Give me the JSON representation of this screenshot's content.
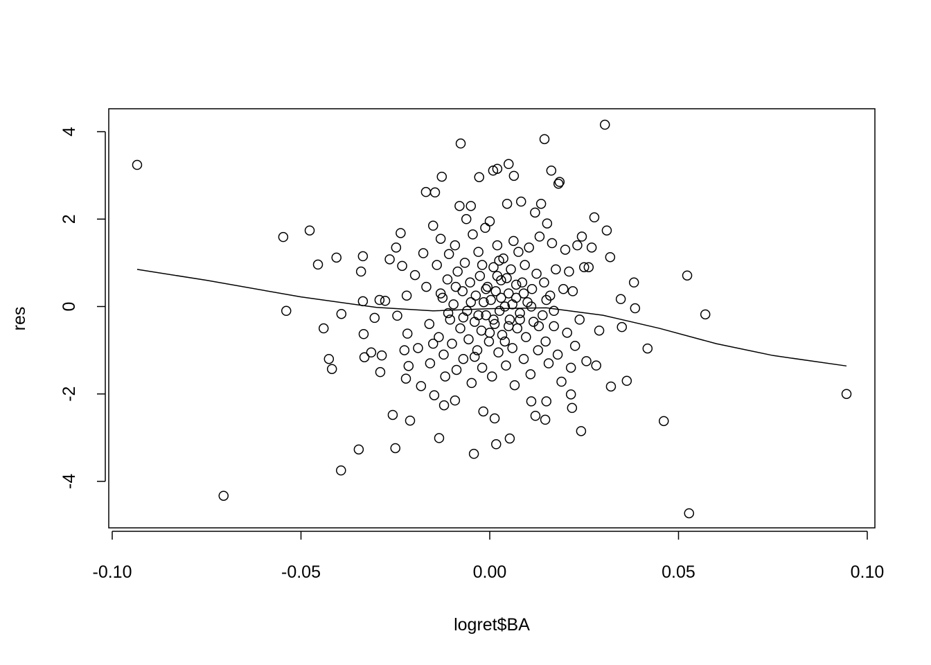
{
  "chart_data": {
    "type": "scatter",
    "title": "",
    "xlabel": "logret$BA",
    "ylabel": "res",
    "xlim": [
      -0.101,
      0.102
    ],
    "ylim": [
      -5.06,
      4.52
    ],
    "grid": false,
    "x_ticks": [
      -0.1,
      -0.05,
      0.0,
      0.05,
      0.1
    ],
    "x_tick_labels": [
      "-0.10",
      "-0.05",
      "0.00",
      "0.05",
      "0.10"
    ],
    "y_ticks": [
      -4,
      -2,
      0,
      2,
      4
    ],
    "y_tick_labels": [
      "-4",
      "-2",
      "0",
      "2",
      "4"
    ],
    "point_color": "#000000",
    "marker": "open-circle",
    "points": [
      [
        -0.0934,
        3.24
      ],
      [
        -0.0705,
        -4.33
      ],
      [
        -0.0547,
        1.59
      ],
      [
        -0.0539,
        -0.1
      ],
      [
        -0.0477,
        1.74
      ],
      [
        -0.0455,
        0.96
      ],
      [
        -0.044,
        -0.5
      ],
      [
        -0.0426,
        -1.2
      ],
      [
        -0.0418,
        -1.43
      ],
      [
        -0.0406,
        1.12
      ],
      [
        -0.0394,
        -3.75
      ],
      [
        -0.0393,
        -0.17
      ],
      [
        -0.0347,
        -3.27
      ],
      [
        -0.0341,
        0.8
      ],
      [
        -0.0336,
        1.15
      ],
      [
        -0.0336,
        0.12
      ],
      [
        -0.0334,
        -0.63
      ],
      [
        -0.0332,
        -1.16
      ],
      [
        -0.0314,
        -1.05
      ],
      [
        -0.0305,
        -0.26
      ],
      [
        -0.0292,
        0.15
      ],
      [
        -0.029,
        -1.5
      ],
      [
        -0.0286,
        -1.12
      ],
      [
        -0.0277,
        0.13
      ],
      [
        -0.0257,
        -2.48
      ],
      [
        -0.025,
        -3.24
      ],
      [
        -0.0077,
        3.73
      ],
      [
        -0.0042,
        -3.37
      ],
      [
        0.0017,
        -3.15
      ],
      [
        0.0053,
        -3.02
      ],
      [
        0.0145,
        3.83
      ],
      [
        0.0305,
        4.16
      ],
      [
        0.0242,
        -2.85
      ],
      [
        0.0321,
        -1.83
      ],
      [
        0.0363,
        -1.7
      ],
      [
        0.0382,
        0.55
      ],
      [
        0.0385,
        -0.04
      ],
      [
        0.0418,
        -0.96
      ],
      [
        0.0461,
        -2.62
      ],
      [
        0.0523,
        0.71
      ],
      [
        0.0528,
        -4.73
      ],
      [
        0.0571,
        -0.18
      ],
      [
        0.0945,
        -2.0
      ],
      [
        0.0319,
        1.13
      ],
      [
        0.031,
        1.74
      ],
      [
        0.0277,
        2.04
      ],
      [
        -0.0169,
        2.62
      ],
      [
        -0.0145,
        2.61
      ],
      [
        -0.0127,
        2.97
      ],
      [
        -0.0028,
        2.96
      ],
      [
        0.0009,
        3.11
      ],
      [
        0.002,
        3.15
      ],
      [
        0.005,
        3.26
      ],
      [
        0.0064,
        2.99
      ],
      [
        0.0163,
        3.11
      ],
      [
        0.0182,
        2.81
      ],
      [
        0.035,
        -0.47
      ],
      [
        0.0347,
        0.17
      ],
      [
        -0.0121,
        -2.26
      ],
      [
        -0.0092,
        -2.15
      ],
      [
        -0.0017,
        -2.4
      ],
      [
        0.0013,
        -2.56
      ],
      [
        0.0121,
        -2.5
      ],
      [
        0.0147,
        -2.59
      ],
      [
        -0.0211,
        -2.61
      ],
      [
        -0.0134,
        -3.01
      ],
      [
        0.011,
        -2.17
      ],
      [
        0.015,
        -2.17
      ],
      [
        0.0215,
        -2.01
      ],
      [
        0.0218,
        -2.32
      ],
      [
        -0.0236,
        1.68
      ],
      [
        -0.0248,
        1.35
      ],
      [
        -0.0265,
        1.08
      ],
      [
        -0.0232,
        0.93
      ],
      [
        -0.022,
        0.25
      ],
      [
        -0.0245,
        -0.21
      ],
      [
        -0.0218,
        -0.62
      ],
      [
        -0.0226,
        -1.0
      ],
      [
        -0.0215,
        -1.36
      ],
      [
        -0.0222,
        -1.65
      ],
      [
        -0.0198,
        0.72
      ],
      [
        -0.019,
        -0.95
      ],
      [
        -0.0182,
        -1.82
      ],
      [
        -0.0176,
        1.22
      ],
      [
        -0.0168,
        0.45
      ],
      [
        -0.016,
        -0.4
      ],
      [
        -0.0158,
        -1.3
      ],
      [
        -0.015,
        1.85
      ],
      [
        -0.0147,
        -2.03
      ],
      [
        -0.014,
        0.95
      ],
      [
        -0.0135,
        -0.7
      ],
      [
        -0.013,
        1.55
      ],
      [
        -0.0125,
        0.2
      ],
      [
        -0.0122,
        -1.1
      ],
      [
        -0.0118,
        -1.6
      ],
      [
        -0.0112,
        0.62
      ],
      [
        -0.0108,
        1.2
      ],
      [
        -0.0105,
        -0.3
      ],
      [
        -0.01,
        -0.85
      ],
      [
        -0.0096,
        0.05
      ],
      [
        -0.0092,
        1.4
      ],
      [
        -0.0088,
        -1.45
      ],
      [
        -0.0085,
        0.8
      ],
      [
        -0.008,
        2.3
      ],
      [
        -0.0078,
        -0.5
      ],
      [
        -0.0072,
        0.35
      ],
      [
        -0.007,
        -1.2
      ],
      [
        -0.0066,
        1.0
      ],
      [
        -0.0062,
        2.0
      ],
      [
        -0.006,
        -0.1
      ],
      [
        -0.0056,
        -0.75
      ],
      [
        -0.0052,
        0.55
      ],
      [
        -0.005,
        2.3
      ],
      [
        -0.0048,
        -1.75
      ],
      [
        -0.0045,
        1.65
      ],
      [
        -0.004,
        -0.35
      ],
      [
        -0.0037,
        0.25
      ],
      [
        -0.0033,
        -1.0
      ],
      [
        -0.003,
        1.25
      ],
      [
        -0.0026,
        0.7
      ],
      [
        -0.0022,
        -0.55
      ],
      [
        -0.002,
        -1.4
      ],
      [
        -0.0016,
        0.1
      ],
      [
        -0.0012,
        1.8
      ],
      [
        -0.001,
        -0.2
      ],
      [
        -0.0006,
        0.45
      ],
      [
        -0.0002,
        -0.8
      ],
      [
        0.0,
        1.95
      ],
      [
        0.0003,
        0.15
      ],
      [
        0.0006,
        -1.6
      ],
      [
        0.001,
        0.9
      ],
      [
        0.0013,
        -0.4
      ],
      [
        0.0016,
        0.35
      ],
      [
        0.002,
        1.4
      ],
      [
        0.0023,
        -1.05
      ],
      [
        0.0026,
        -0.1
      ],
      [
        0.003,
        0.6
      ],
      [
        0.0033,
        -0.65
      ],
      [
        0.0036,
        1.1
      ],
      [
        0.004,
        0.0
      ],
      [
        0.0043,
        -1.35
      ],
      [
        0.0046,
        2.35
      ],
      [
        0.005,
        0.3
      ],
      [
        0.0053,
        -0.3
      ],
      [
        0.0056,
        0.85
      ],
      [
        0.006,
        -0.95
      ],
      [
        0.0063,
        1.5
      ],
      [
        0.0066,
        -1.8
      ],
      [
        0.007,
        0.2
      ],
      [
        0.0073,
        -0.5
      ],
      [
        0.0076,
        1.25
      ],
      [
        0.008,
        -0.15
      ],
      [
        0.0083,
        2.4
      ],
      [
        0.0086,
        0.55
      ],
      [
        0.009,
        -1.2
      ],
      [
        0.0093,
        0.95
      ],
      [
        0.0096,
        -0.7
      ],
      [
        0.01,
        0.1
      ],
      [
        0.0104,
        1.35
      ],
      [
        0.0108,
        -1.55
      ],
      [
        0.0112,
        0.4
      ],
      [
        0.0116,
        -0.35
      ],
      [
        0.012,
        2.15
      ],
      [
        0.0124,
        0.75
      ],
      [
        0.0128,
        -1.0
      ],
      [
        0.0132,
        1.6
      ],
      [
        0.0136,
        2.35
      ],
      [
        0.014,
        -0.2
      ],
      [
        0.0144,
        0.55
      ],
      [
        0.0148,
        -0.8
      ],
      [
        0.0152,
        1.9
      ],
      [
        0.0156,
        -1.3
      ],
      [
        0.016,
        0.25
      ],
      [
        0.0165,
        1.45
      ],
      [
        0.017,
        -0.45
      ],
      [
        0.0175,
        0.85
      ],
      [
        0.018,
        -1.1
      ],
      [
        0.0185,
        2.85
      ],
      [
        0.019,
        -1.72
      ],
      [
        0.0195,
        0.4
      ],
      [
        0.02,
        1.3
      ],
      [
        0.0205,
        -0.6
      ],
      [
        0.021,
        0.8
      ],
      [
        0.0215,
        -1.4
      ],
      [
        0.022,
        0.35
      ],
      [
        0.0226,
        -0.9
      ],
      [
        0.0232,
        1.4
      ],
      [
        0.0238,
        -0.3
      ],
      [
        0.0244,
        1.6
      ],
      [
        0.025,
        0.9
      ],
      [
        0.0256,
        -1.25
      ],
      [
        0.0262,
        0.9
      ],
      [
        0.027,
        1.35
      ],
      [
        0.0282,
        -1.35
      ],
      [
        0.029,
        -0.55
      ],
      [
        -0.005,
        0.1
      ],
      [
        -0.003,
        -0.2
      ],
      [
        -0.001,
        0.4
      ],
      [
        0.001,
        -0.3
      ],
      [
        0.003,
        0.2
      ],
      [
        0.005,
        -0.45
      ],
      [
        0.007,
        0.5
      ],
      [
        0.009,
        0.3
      ],
      [
        -0.007,
        -0.25
      ],
      [
        0.002,
        0.7
      ],
      [
        0.004,
        -0.8
      ],
      [
        0.006,
        0.05
      ],
      [
        -0.002,
        0.95
      ],
      [
        0.008,
        -0.3
      ],
      [
        0.011,
        0.0
      ],
      [
        0.013,
        -0.45
      ],
      [
        -0.009,
        0.45
      ],
      [
        -0.011,
        -0.15
      ],
      [
        -0.013,
        0.3
      ],
      [
        0.015,
        0.15
      ],
      [
        0.017,
        -0.1
      ],
      [
        -0.015,
        -0.85
      ],
      [
        0.0,
        -0.6
      ],
      [
        0.0025,
        1.05
      ],
      [
        -0.004,
        -1.15
      ],
      [
        0.0045,
        0.65
      ]
    ],
    "smooth_line": {
      "x": [
        -0.0934,
        -0.075,
        -0.05,
        -0.03,
        -0.015,
        0.0,
        0.015,
        0.03,
        0.045,
        0.06,
        0.075,
        0.0945
      ],
      "y": [
        0.85,
        0.6,
        0.22,
        -0.02,
        -0.1,
        -0.05,
        -0.03,
        -0.2,
        -0.5,
        -0.85,
        -1.12,
        -1.36
      ]
    }
  }
}
